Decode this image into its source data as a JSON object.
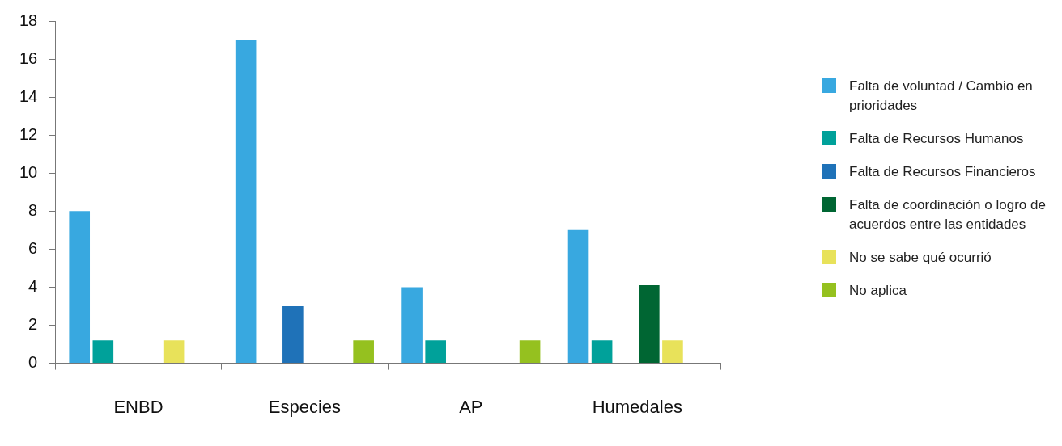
{
  "chart_data": {
    "type": "bar",
    "categories": [
      "ENBD",
      "Especies",
      "AP",
      "Humedales"
    ],
    "series": [
      {
        "name": "Falta de voluntad / Cambio en prioridades",
        "color": "#38a8e0",
        "values": [
          8,
          17,
          4,
          7
        ]
      },
      {
        "name": "Falta de Recursos Humanos",
        "color": "#00a19a",
        "values": [
          1.2,
          null,
          1.2,
          1.2
        ]
      },
      {
        "name": "Falta de Recursos Financieros",
        "color": "#1f72b8",
        "values": [
          null,
          3,
          null,
          null
        ]
      },
      {
        "name": "Falta de coordinación o logro de acuerdos entre las entidades",
        "color": "#006633",
        "values": [
          null,
          null,
          null,
          4.1
        ]
      },
      {
        "name": "No se sabe qué ocurrió",
        "color": "#e8e25a",
        "values": [
          1.2,
          null,
          null,
          1.2
        ]
      },
      {
        "name": "No aplica",
        "color": "#95c11f",
        "values": [
          null,
          1.2,
          1.2,
          null
        ]
      }
    ],
    "ylim": [
      0,
      18
    ],
    "yticks": [
      0,
      2,
      4,
      6,
      8,
      10,
      12,
      14,
      16,
      18
    ],
    "grid": false,
    "legend": "right"
  }
}
